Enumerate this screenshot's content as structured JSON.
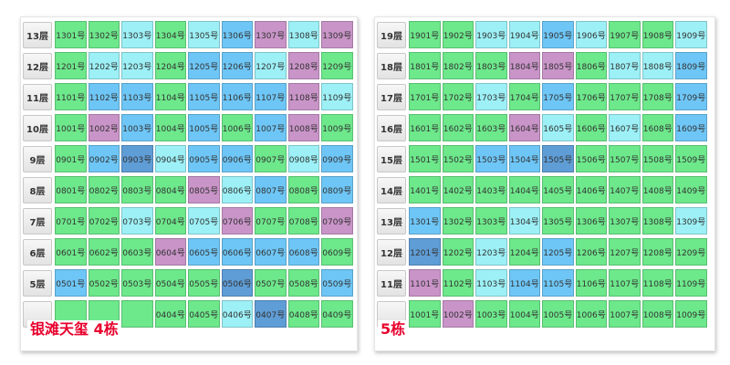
{
  "colors": {
    "green": "#6de88b",
    "cyan": "#9cf0f6",
    "blue": "#6ec6f6",
    "purple": "#c994c8",
    "dark_blue": "#5f9dd6",
    "label_red": "#e8002d"
  },
  "buildings": [
    {
      "label": "银滩天玺 4栋",
      "floors": [
        {
          "name": "13层",
          "units": [
            {
              "no": "1301号",
              "s": "green"
            },
            {
              "no": "1302号",
              "s": "green"
            },
            {
              "no": "1303号",
              "s": "cyan"
            },
            {
              "no": "1304号",
              "s": "green"
            },
            {
              "no": "1305号",
              "s": "cyan"
            },
            {
              "no": "1306号",
              "s": "blue"
            },
            {
              "no": "1307号",
              "s": "purple"
            },
            {
              "no": "1308号",
              "s": "cyan"
            },
            {
              "no": "1309号",
              "s": "purple"
            }
          ]
        },
        {
          "name": "12层",
          "units": [
            {
              "no": "1201号",
              "s": "green"
            },
            {
              "no": "1202号",
              "s": "cyan"
            },
            {
              "no": "1203号",
              "s": "cyan"
            },
            {
              "no": "1204号",
              "s": "green"
            },
            {
              "no": "1205号",
              "s": "blue"
            },
            {
              "no": "1206号",
              "s": "blue"
            },
            {
              "no": "1207号",
              "s": "cyan"
            },
            {
              "no": "1208号",
              "s": "purple"
            },
            {
              "no": "1209号",
              "s": "green"
            }
          ]
        },
        {
          "name": "11层",
          "units": [
            {
              "no": "1101号",
              "s": "green"
            },
            {
              "no": "1102号",
              "s": "blue"
            },
            {
              "no": "1103号",
              "s": "blue"
            },
            {
              "no": "1104号",
              "s": "green"
            },
            {
              "no": "1105号",
              "s": "blue"
            },
            {
              "no": "1106号",
              "s": "blue"
            },
            {
              "no": "1107号",
              "s": "blue"
            },
            {
              "no": "1108号",
              "s": "purple"
            },
            {
              "no": "1109号",
              "s": "cyan"
            }
          ]
        },
        {
          "name": "10层",
          "units": [
            {
              "no": "1001号",
              "s": "green"
            },
            {
              "no": "1002号",
              "s": "purple"
            },
            {
              "no": "1003号",
              "s": "blue"
            },
            {
              "no": "1004号",
              "s": "green"
            },
            {
              "no": "1005号",
              "s": "blue"
            },
            {
              "no": "1006号",
              "s": "green"
            },
            {
              "no": "1007号",
              "s": "blue"
            },
            {
              "no": "1008号",
              "s": "purple"
            },
            {
              "no": "1009号",
              "s": "green"
            }
          ]
        },
        {
          "name": "9层",
          "units": [
            {
              "no": "0901号",
              "s": "green"
            },
            {
              "no": "0902号",
              "s": "blue"
            },
            {
              "no": "0903号",
              "s": "dark"
            },
            {
              "no": "0904号",
              "s": "cyan"
            },
            {
              "no": "0905号",
              "s": "blue"
            },
            {
              "no": "0906号",
              "s": "blue"
            },
            {
              "no": "0907号",
              "s": "green"
            },
            {
              "no": "0908号",
              "s": "cyan"
            },
            {
              "no": "0909号",
              "s": "blue"
            }
          ]
        },
        {
          "name": "8层",
          "units": [
            {
              "no": "0801号",
              "s": "green"
            },
            {
              "no": "0802号",
              "s": "green"
            },
            {
              "no": "0803号",
              "s": "green"
            },
            {
              "no": "0804号",
              "s": "green"
            },
            {
              "no": "0805号",
              "s": "purple"
            },
            {
              "no": "0806号",
              "s": "cyan"
            },
            {
              "no": "0807号",
              "s": "blue"
            },
            {
              "no": "0808号",
              "s": "green"
            },
            {
              "no": "0809号",
              "s": "blue"
            }
          ]
        },
        {
          "name": "7层",
          "units": [
            {
              "no": "0701号",
              "s": "green"
            },
            {
              "no": "0702号",
              "s": "green"
            },
            {
              "no": "0703号",
              "s": "cyan"
            },
            {
              "no": "0704号",
              "s": "green"
            },
            {
              "no": "0705号",
              "s": "cyan"
            },
            {
              "no": "0706号",
              "s": "purple"
            },
            {
              "no": "0707号",
              "s": "green"
            },
            {
              "no": "0708号",
              "s": "green"
            },
            {
              "no": "0709号",
              "s": "purple"
            }
          ]
        },
        {
          "name": "6层",
          "units": [
            {
              "no": "0601号",
              "s": "green"
            },
            {
              "no": "0602号",
              "s": "green"
            },
            {
              "no": "0603号",
              "s": "green"
            },
            {
              "no": "0604号",
              "s": "purple"
            },
            {
              "no": "0605号",
              "s": "blue"
            },
            {
              "no": "0606号",
              "s": "blue"
            },
            {
              "no": "0607号",
              "s": "blue"
            },
            {
              "no": "0608号",
              "s": "blue"
            },
            {
              "no": "0609号",
              "s": "green"
            }
          ]
        },
        {
          "name": "5层",
          "units": [
            {
              "no": "0501号",
              "s": "blue"
            },
            {
              "no": "0502号",
              "s": "green"
            },
            {
              "no": "0503号",
              "s": "green"
            },
            {
              "no": "0504号",
              "s": "green"
            },
            {
              "no": "0505号",
              "s": "green"
            },
            {
              "no": "0506号",
              "s": "dark"
            },
            {
              "no": "0507号",
              "s": "green"
            },
            {
              "no": "0508号",
              "s": "green"
            },
            {
              "no": "0509号",
              "s": "blue"
            }
          ]
        },
        {
          "name": "",
          "units": [
            {
              "no": "",
              "s": "green"
            },
            {
              "no": "",
              "s": "green"
            },
            {
              "no": "",
              "s": "green"
            },
            {
              "no": "0404号",
              "s": "green"
            },
            {
              "no": "0405号",
              "s": "green"
            },
            {
              "no": "0406号",
              "s": "cyan"
            },
            {
              "no": "0407号",
              "s": "dark"
            },
            {
              "no": "0408号",
              "s": "green"
            },
            {
              "no": "0409号",
              "s": "green"
            }
          ]
        }
      ]
    },
    {
      "label": "5栋",
      "floors": [
        {
          "name": "19层",
          "units": [
            {
              "no": "1901号",
              "s": "green"
            },
            {
              "no": "1902号",
              "s": "green"
            },
            {
              "no": "1903号",
              "s": "cyan"
            },
            {
              "no": "1904号",
              "s": "cyan"
            },
            {
              "no": "1905号",
              "s": "blue"
            },
            {
              "no": "1906号",
              "s": "cyan"
            },
            {
              "no": "1907号",
              "s": "green"
            },
            {
              "no": "1908号",
              "s": "green"
            },
            {
              "no": "1909号",
              "s": "cyan"
            }
          ]
        },
        {
          "name": "18层",
          "units": [
            {
              "no": "1801号",
              "s": "green"
            },
            {
              "no": "1802号",
              "s": "green"
            },
            {
              "no": "1803号",
              "s": "green"
            },
            {
              "no": "1804号",
              "s": "purple"
            },
            {
              "no": "1805号",
              "s": "purple"
            },
            {
              "no": "1806号",
              "s": "green"
            },
            {
              "no": "1807号",
              "s": "cyan"
            },
            {
              "no": "1808号",
              "s": "cyan"
            },
            {
              "no": "1809号",
              "s": "blue"
            }
          ]
        },
        {
          "name": "17层",
          "units": [
            {
              "no": "1701号",
              "s": "green"
            },
            {
              "no": "1702号",
              "s": "green"
            },
            {
              "no": "1703号",
              "s": "cyan"
            },
            {
              "no": "1704号",
              "s": "green"
            },
            {
              "no": "1705号",
              "s": "blue"
            },
            {
              "no": "1706号",
              "s": "green"
            },
            {
              "no": "1707号",
              "s": "green"
            },
            {
              "no": "1708号",
              "s": "green"
            },
            {
              "no": "1709号",
              "s": "blue"
            }
          ]
        },
        {
          "name": "16层",
          "units": [
            {
              "no": "1601号",
              "s": "green"
            },
            {
              "no": "1602号",
              "s": "green"
            },
            {
              "no": "1603号",
              "s": "green"
            },
            {
              "no": "1604号",
              "s": "purple"
            },
            {
              "no": "1605号",
              "s": "cyan"
            },
            {
              "no": "1606号",
              "s": "green"
            },
            {
              "no": "1607号",
              "s": "cyan"
            },
            {
              "no": "1608号",
              "s": "green"
            },
            {
              "no": "1609号",
              "s": "blue"
            }
          ]
        },
        {
          "name": "15层",
          "units": [
            {
              "no": "1501号",
              "s": "green"
            },
            {
              "no": "1502号",
              "s": "green"
            },
            {
              "no": "1503号",
              "s": "blue"
            },
            {
              "no": "1504号",
              "s": "blue"
            },
            {
              "no": "1505号",
              "s": "dark"
            },
            {
              "no": "1506号",
              "s": "green"
            },
            {
              "no": "1507号",
              "s": "green"
            },
            {
              "no": "1508号",
              "s": "green"
            },
            {
              "no": "1509号",
              "s": "green"
            }
          ]
        },
        {
          "name": "14层",
          "units": [
            {
              "no": "1401号",
              "s": "green"
            },
            {
              "no": "1402号",
              "s": "green"
            },
            {
              "no": "1403号",
              "s": "green"
            },
            {
              "no": "1404号",
              "s": "green"
            },
            {
              "no": "1405号",
              "s": "green"
            },
            {
              "no": "1406号",
              "s": "green"
            },
            {
              "no": "1407号",
              "s": "green"
            },
            {
              "no": "1408号",
              "s": "green"
            },
            {
              "no": "1409号",
              "s": "green"
            }
          ]
        },
        {
          "name": "13层",
          "units": [
            {
              "no": "1301号",
              "s": "blue"
            },
            {
              "no": "1302号",
              "s": "green"
            },
            {
              "no": "1303号",
              "s": "green"
            },
            {
              "no": "1304号",
              "s": "cyan"
            },
            {
              "no": "1305号",
              "s": "green"
            },
            {
              "no": "1306号",
              "s": "green"
            },
            {
              "no": "1307号",
              "s": "green"
            },
            {
              "no": "1308号",
              "s": "green"
            },
            {
              "no": "1309号",
              "s": "cyan"
            }
          ]
        },
        {
          "name": "12层",
          "units": [
            {
              "no": "1201号",
              "s": "dark"
            },
            {
              "no": "1202号",
              "s": "green"
            },
            {
              "no": "1203号",
              "s": "cyan"
            },
            {
              "no": "1204号",
              "s": "green"
            },
            {
              "no": "1205号",
              "s": "blue"
            },
            {
              "no": "1206号",
              "s": "green"
            },
            {
              "no": "1207号",
              "s": "green"
            },
            {
              "no": "1208号",
              "s": "green"
            },
            {
              "no": "1209号",
              "s": "green"
            }
          ]
        },
        {
          "name": "11层",
          "units": [
            {
              "no": "1101号",
              "s": "purple"
            },
            {
              "no": "1102号",
              "s": "green"
            },
            {
              "no": "1103号",
              "s": "cyan"
            },
            {
              "no": "1104号",
              "s": "blue"
            },
            {
              "no": "1105号",
              "s": "blue"
            },
            {
              "no": "1106号",
              "s": "green"
            },
            {
              "no": "1107号",
              "s": "green"
            },
            {
              "no": "1108号",
              "s": "green"
            },
            {
              "no": "1109号",
              "s": "green"
            }
          ]
        },
        {
          "name": "",
          "units": [
            {
              "no": "1001号",
              "s": "green"
            },
            {
              "no": "1002号",
              "s": "purple"
            },
            {
              "no": "1003号",
              "s": "green"
            },
            {
              "no": "1004号",
              "s": "green"
            },
            {
              "no": "1005号",
              "s": "green"
            },
            {
              "no": "1006号",
              "s": "green"
            },
            {
              "no": "1007号",
              "s": "green"
            },
            {
              "no": "1008号",
              "s": "green"
            },
            {
              "no": "1009号",
              "s": "green"
            }
          ]
        }
      ]
    }
  ]
}
